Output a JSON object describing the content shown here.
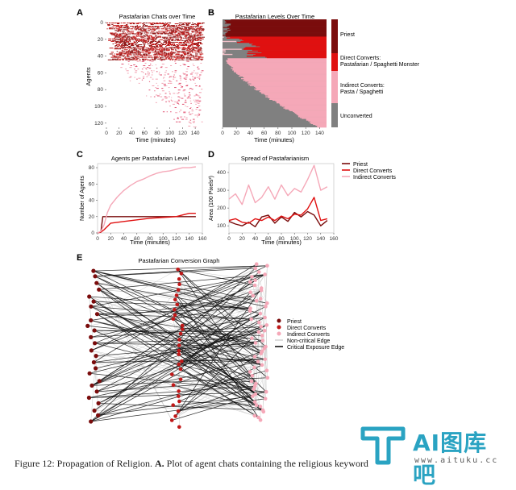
{
  "caption": {
    "prefix": "Figure 12: Propagation of Religion. ",
    "bold": "A.",
    "rest": " Plot of agent chats containing the religious keyword"
  },
  "watermark": {
    "brand": "AI图库吧",
    "url": "www.aituku.cc"
  },
  "colors": {
    "priest": "#7a0c0c",
    "direct": "#e01010",
    "indirect": "#f5a8b8",
    "unconverted": "#808080",
    "critical": "#111111",
    "noncritical": "#cccccc"
  },
  "chart_data": [
    {
      "panel": "A",
      "type": "heatmap",
      "title": "Pastafarian Chats over Time",
      "xlabel": "Time (minutes)",
      "ylabel": "Agents",
      "xticks": [
        "0",
        "20",
        "40",
        "60",
        "80",
        "100",
        "120",
        "140"
      ],
      "yticks": [
        "0",
        "20",
        "40",
        "60",
        "80",
        "100",
        "120"
      ],
      "xlim": [
        0,
        150
      ],
      "ylim": [
        0,
        125
      ],
      "rows_dark": 45,
      "rows_light": 80
    },
    {
      "panel": "B",
      "type": "area",
      "title": "Pastafarian Levels Over Time",
      "xlabel": "Time (minutes)",
      "xticks": [
        "0",
        "20",
        "40",
        "60",
        "80",
        "100",
        "120",
        "140"
      ],
      "xlim": [
        0,
        150
      ],
      "legend": [
        "Priest",
        "Direct Converts:",
        "Pastafarian / Spaghetti Monster",
        "Indirect Converts:",
        "Pasta / Spaghetti",
        "Unconverted"
      ]
    },
    {
      "panel": "C",
      "type": "line",
      "title": "Agents per Pastafarian Level",
      "xlabel": "Time (minutes)",
      "ylabel": "Number of Agents",
      "xticks": [
        "0",
        "20",
        "40",
        "60",
        "80",
        "100",
        "120",
        "140",
        "160"
      ],
      "yticks": [
        "0",
        "20",
        "40",
        "60",
        "80"
      ],
      "xlim": [
        0,
        160
      ],
      "ylim": [
        0,
        85
      ],
      "series": [
        {
          "name": "Priest",
          "x": [
            0,
            5,
            8,
            150
          ],
          "values": [
            0,
            1,
            20,
            20
          ]
        },
        {
          "name": "Direct Converts",
          "x": [
            0,
            5,
            10,
            20,
            40,
            60,
            80,
            100,
            120,
            130,
            140,
            150
          ],
          "values": [
            0,
            1,
            4,
            12,
            14,
            16,
            18,
            19,
            20,
            22,
            24,
            24
          ]
        },
        {
          "name": "Indirect Converts",
          "x": [
            0,
            5,
            10,
            15,
            20,
            30,
            40,
            50,
            60,
            70,
            80,
            90,
            100,
            110,
            120,
            130,
            140,
            150
          ],
          "values": [
            0,
            2,
            10,
            25,
            34,
            44,
            52,
            58,
            63,
            66,
            70,
            73,
            75,
            76,
            78,
            80,
            80,
            81
          ]
        }
      ]
    },
    {
      "panel": "D",
      "type": "line",
      "title": "Spread of Pastafarianism",
      "xlabel": "Time (minutes)",
      "ylabel": "Area (100 Pixels²)",
      "xticks": [
        "0",
        "20",
        "40",
        "60",
        "80",
        "100",
        "120",
        "140",
        "160"
      ],
      "yticks": [
        "100",
        "200",
        "300",
        "400"
      ],
      "xlim": [
        0,
        160
      ],
      "ylim": [
        60,
        450
      ],
      "legend": [
        "Priest",
        "Direct Converts",
        "Indirect Converts"
      ],
      "series": [
        {
          "name": "Priest",
          "x": [
            0,
            10,
            20,
            30,
            40,
            50,
            60,
            70,
            80,
            90,
            100,
            110,
            120,
            130,
            140,
            150
          ],
          "values": [
            125,
            110,
            100,
            120,
            95,
            150,
            160,
            115,
            150,
            125,
            175,
            150,
            180,
            160,
            100,
            130
          ]
        },
        {
          "name": "Direct Converts",
          "x": [
            0,
            10,
            20,
            30,
            40,
            50,
            60,
            70,
            80,
            90,
            100,
            110,
            120,
            130,
            140,
            150
          ],
          "values": [
            130,
            140,
            120,
            115,
            140,
            130,
            150,
            130,
            155,
            140,
            165,
            160,
            195,
            260,
            130,
            140
          ]
        },
        {
          "name": "Indirect Converts",
          "x": [
            0,
            10,
            20,
            30,
            40,
            50,
            60,
            70,
            80,
            90,
            100,
            110,
            120,
            130,
            140,
            150
          ],
          "values": [
            250,
            280,
            220,
            330,
            230,
            260,
            320,
            250,
            330,
            270,
            310,
            290,
            360,
            440,
            300,
            320
          ]
        }
      ]
    },
    {
      "panel": "E",
      "type": "diagram",
      "title": "Pastafarian Conversion Graph",
      "legend": [
        "Priest",
        "Direct Converts",
        "Indirect Converts",
        "Non-critical Edge",
        "Critical Exposure Edge"
      ]
    }
  ]
}
